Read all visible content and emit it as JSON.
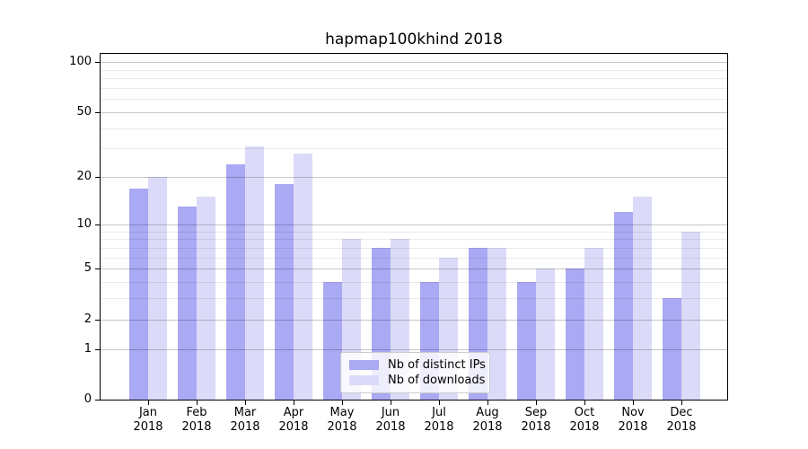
{
  "figure": {
    "background": "#ffffff"
  },
  "chart_data": {
    "type": "bar",
    "title": "hapmap100khind 2018",
    "categories": [
      "Jan",
      "Feb",
      "Mar",
      "Apr",
      "May",
      "Jun",
      "Jul",
      "Aug",
      "Sep",
      "Oct",
      "Nov",
      "Dec"
    ],
    "category_year": "2018",
    "series": [
      {
        "name": "Nb of distinct IPs",
        "color": "#a9a9f4",
        "values": [
          17,
          13,
          24,
          18,
          4,
          7,
          4,
          7,
          4,
          5,
          12,
          3
        ]
      },
      {
        "name": "Nb of downloads",
        "color": "#dbdbf9",
        "values": [
          20,
          15,
          31,
          28,
          8,
          8,
          6,
          7,
          5,
          7,
          15,
          9
        ]
      }
    ],
    "yscale": "log1p",
    "ylim": [
      0,
      112
    ],
    "y_major_ticks": [
      0,
      1,
      2,
      5,
      10,
      20,
      50,
      100
    ],
    "y_minor_gridlines": [
      3,
      4,
      6,
      7,
      8,
      9,
      30,
      40,
      60,
      70,
      80,
      90
    ],
    "grid": "on",
    "legend_position": "lower center",
    "colors": {
      "axis_line": "#000000",
      "major_grid": "rgba(0,0,0,0.22)",
      "minor_grid": "rgba(0,0,0,0.08)",
      "legend_border": "#cccccc",
      "legend_background": "rgba(255,255,255,0.8)"
    }
  }
}
